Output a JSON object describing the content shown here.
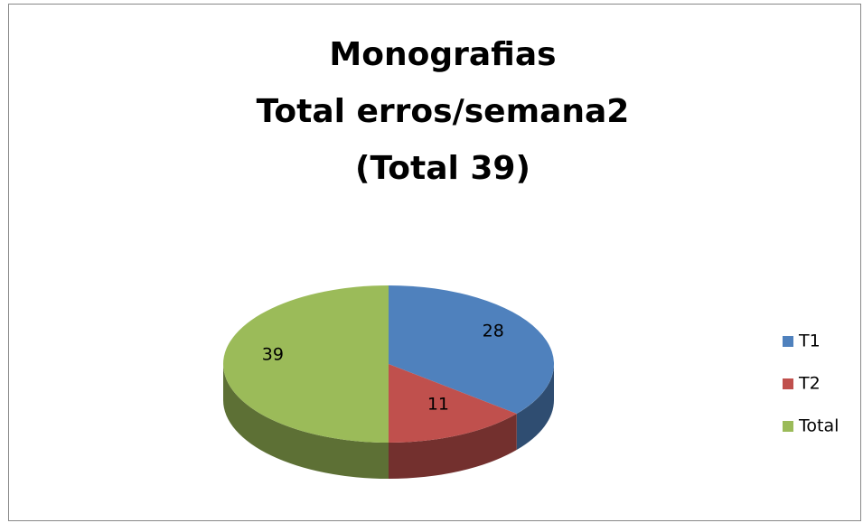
{
  "chart_data": {
    "type": "pie3d",
    "title": [
      "Monografias",
      "Total erros/semana2",
      "(Total 39)"
    ],
    "categories": [
      "T1",
      "T2",
      "Total"
    ],
    "values": [
      28,
      11,
      39
    ],
    "colors": [
      "#4f81bd",
      "#c0504d",
      "#9bbb59"
    ],
    "legend": "right"
  }
}
